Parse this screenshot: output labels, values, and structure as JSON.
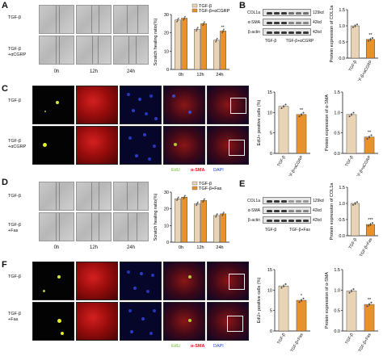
{
  "colors": {
    "tgf_bar": "#e8d3b5",
    "tgf_treat_bar": "#e8922e",
    "edu_label": "#6abf2a",
    "sma_label": "#e01b1b",
    "dapi_label": "#2a4ad6"
  },
  "panels": {
    "A": {
      "letter": "A",
      "rows": [
        "TGF-β",
        "TGF-β\n+αCGRP"
      ],
      "times": [
        "0h",
        "12h",
        "24h"
      ]
    },
    "B": {
      "letter": "B",
      "blot_labels": [
        "COL1a",
        "α-SMA",
        "β-actin"
      ],
      "kd": [
        "129kd",
        "42kd",
        "42kd"
      ],
      "lanes": [
        "TGF-β",
        "TGF-β+αCGRP"
      ]
    },
    "C": {
      "letter": "C",
      "rows": [
        "TGF-β",
        "TGF-β\n+αCGRP"
      ],
      "stains": [
        "EdU",
        "α-SMA",
        "DAPI"
      ]
    },
    "D": {
      "letter": "D",
      "rows": [
        "TGF-β",
        "TGF-β\n+Fas"
      ],
      "times": [
        "0h",
        "12h",
        "24h"
      ]
    },
    "E": {
      "letter": "E",
      "blot_labels": [
        "COL1a",
        "α-SMA",
        "β-actin"
      ],
      "kd": [
        "129kd",
        "42kd",
        "42kd"
      ],
      "lanes": [
        "TGF-β",
        "TGF-β+Fas"
      ]
    },
    "F": {
      "letter": "F",
      "rows": [
        "TGF-β",
        "TGF-β\n+Fas"
      ],
      "stains": [
        "EdU",
        "α-SMA",
        "DAPI"
      ]
    }
  },
  "chart_data": [
    {
      "id": "A-scratch",
      "type": "bar",
      "ylabel": "Scratch healing ratio(%)",
      "categories": [
        "0h",
        "12h",
        "24h"
      ],
      "ylim": [
        0,
        30
      ],
      "yticks": [
        0,
        10,
        20,
        30
      ],
      "series": [
        {
          "name": "TGF-β",
          "values": [
            27,
            22,
            16
          ]
        },
        {
          "name": "TGF-β+αCGRP",
          "values": [
            28,
            25,
            21
          ]
        }
      ],
      "significance": [
        "",
        "",
        "**"
      ],
      "legend_position": "top"
    },
    {
      "id": "B-col1a",
      "type": "bar",
      "ylabel": "Protein expression of COL1a",
      "categories": [
        "TGF-β",
        "TGF-β+αCGRP"
      ],
      "ylim": [
        0,
        1.5
      ],
      "yticks": [
        0.0,
        0.5,
        1.0,
        1.5
      ],
      "values": [
        1.0,
        0.58
      ],
      "significance": [
        "",
        "**"
      ]
    },
    {
      "id": "C-edu",
      "type": "bar",
      "ylabel": "EdU+ positive cells (%)",
      "categories": [
        "TGF-β",
        "TGF-β+αCGRP"
      ],
      "ylim": [
        0,
        15
      ],
      "yticks": [
        0,
        5,
        10,
        15
      ],
      "values": [
        11.5,
        9.5
      ],
      "significance": [
        "",
        "**"
      ]
    },
    {
      "id": "C-sma",
      "type": "bar",
      "ylabel": "Protein expression of α-SMA",
      "categories": [
        "TGF-β",
        "TGF-β+αCGRP"
      ],
      "ylim": [
        0,
        1.5
      ],
      "yticks": [
        0.0,
        0.5,
        1.0,
        1.5
      ],
      "values": [
        0.95,
        0.4
      ],
      "significance": [
        "",
        "**"
      ]
    },
    {
      "id": "D-scratch",
      "type": "bar",
      "ylabel": "Scratch healing ratio(%)",
      "categories": [
        "0h",
        "12h",
        "24h"
      ],
      "ylim": [
        0,
        30
      ],
      "yticks": [
        0,
        10,
        20,
        30
      ],
      "series": [
        {
          "name": "TGF-β",
          "values": [
            26,
            23,
            16
          ]
        },
        {
          "name": "TGF-β+Fas",
          "values": [
            27,
            25,
            17
          ]
        }
      ],
      "significance": [
        "",
        "",
        ""
      ],
      "legend_position": "top"
    },
    {
      "id": "E-col1a",
      "type": "bar",
      "ylabel": "Protein expression of COL1a",
      "categories": [
        "TGF-β",
        "TGF-β+Fas"
      ],
      "ylim": [
        0,
        1.5
      ],
      "yticks": [
        0.0,
        0.5,
        1.0,
        1.5
      ],
      "values": [
        1.0,
        0.35
      ],
      "significance": [
        "",
        "***"
      ]
    },
    {
      "id": "F-edu",
      "type": "bar",
      "ylabel": "EdU+ positive cells (%)",
      "categories": [
        "TGF-β",
        "TGF-β+Fas"
      ],
      "ylim": [
        0,
        15
      ],
      "yticks": [
        0,
        5,
        10,
        15
      ],
      "values": [
        11,
        7.5
      ],
      "significance": [
        "",
        "*"
      ]
    },
    {
      "id": "F-sma",
      "type": "bar",
      "ylabel": "Protein expression of α-SMA",
      "categories": [
        "TGF-β",
        "TGF-β+Fas"
      ],
      "ylim": [
        0,
        1.5
      ],
      "yticks": [
        0.0,
        0.5,
        1.0,
        1.5
      ],
      "values": [
        0.98,
        0.65
      ],
      "significance": [
        "",
        "**"
      ]
    }
  ]
}
